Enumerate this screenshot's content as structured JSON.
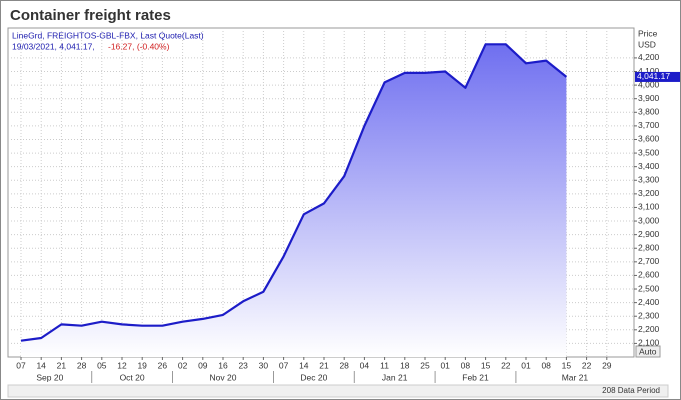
{
  "chart_data": {
    "type": "line",
    "title": "Container freight rates",
    "legend_line_1": "LineGrd, FREIGHTOS-GBL-FBX, Last Quote(Last)",
    "legend_line_2_date_value": "19/03/2021, 4,041.17,",
    "legend_line_2_change": "-16.27, (-0.40%)",
    "y_axis_title": "Price",
    "y_axis_unit": "USD",
    "current_price_label": "4,041.17",
    "auto_label": "Auto",
    "data_period_label": "208 Data Period",
    "categories": [
      "07",
      "14",
      "21",
      "28",
      "05",
      "12",
      "19",
      "26",
      "02",
      "09",
      "16",
      "23",
      "30",
      "07",
      "14",
      "21",
      "28",
      "04",
      "11",
      "18",
      "25",
      "01",
      "08",
      "15",
      "22",
      "01",
      "08",
      "15",
      "22",
      "29"
    ],
    "months": [
      "Sep 20",
      "Oct 20",
      "Nov 20",
      "Dec 20",
      "Jan 21",
      "Feb 21",
      "Mar 21"
    ],
    "series": [
      {
        "name": "FREIGHTOS-GBL-FBX",
        "color": "#1c1cc8",
        "values": [
          2120,
          2140,
          2240,
          2230,
          2260,
          2240,
          2230,
          2230,
          2260,
          2280,
          2310,
          2410,
          2480,
          2740,
          3050,
          3130,
          3330,
          3700,
          4020,
          4090,
          4090,
          4100,
          3980,
          4300,
          4300,
          4160,
          4180,
          4060,
          null,
          null
        ]
      }
    ],
    "ylim": [
      2000,
      4420
    ],
    "yticks": [
      {
        "value": 2100,
        "label": "2,100"
      },
      {
        "value": 2200,
        "label": "2,200"
      },
      {
        "value": 2300,
        "label": "2,300"
      },
      {
        "value": 2400,
        "label": "2,400"
      },
      {
        "value": 2500,
        "label": "2,500"
      },
      {
        "value": 2600,
        "label": "2,600"
      },
      {
        "value": 2700,
        "label": "2,700"
      },
      {
        "value": 2800,
        "label": "2,800"
      },
      {
        "value": 2900,
        "label": "2,900"
      },
      {
        "value": 3000,
        "label": "3,000"
      },
      {
        "value": 3100,
        "label": "3,100"
      },
      {
        "value": 3200,
        "label": "3,200"
      },
      {
        "value": 3300,
        "label": "3,300"
      },
      {
        "value": 3400,
        "label": "3,400"
      },
      {
        "value": 3500,
        "label": "3,500"
      },
      {
        "value": 3600,
        "label": "3,600"
      },
      {
        "value": 3700,
        "label": "3,700"
      },
      {
        "value": 3800,
        "label": "3,800"
      },
      {
        "value": 3900,
        "label": "3,900"
      },
      {
        "value": 4000,
        "label": "4,000"
      },
      {
        "value": 4100,
        "label": "4,100"
      },
      {
        "value": 4200,
        "label": "4,200"
      }
    ],
    "grid": true
  }
}
